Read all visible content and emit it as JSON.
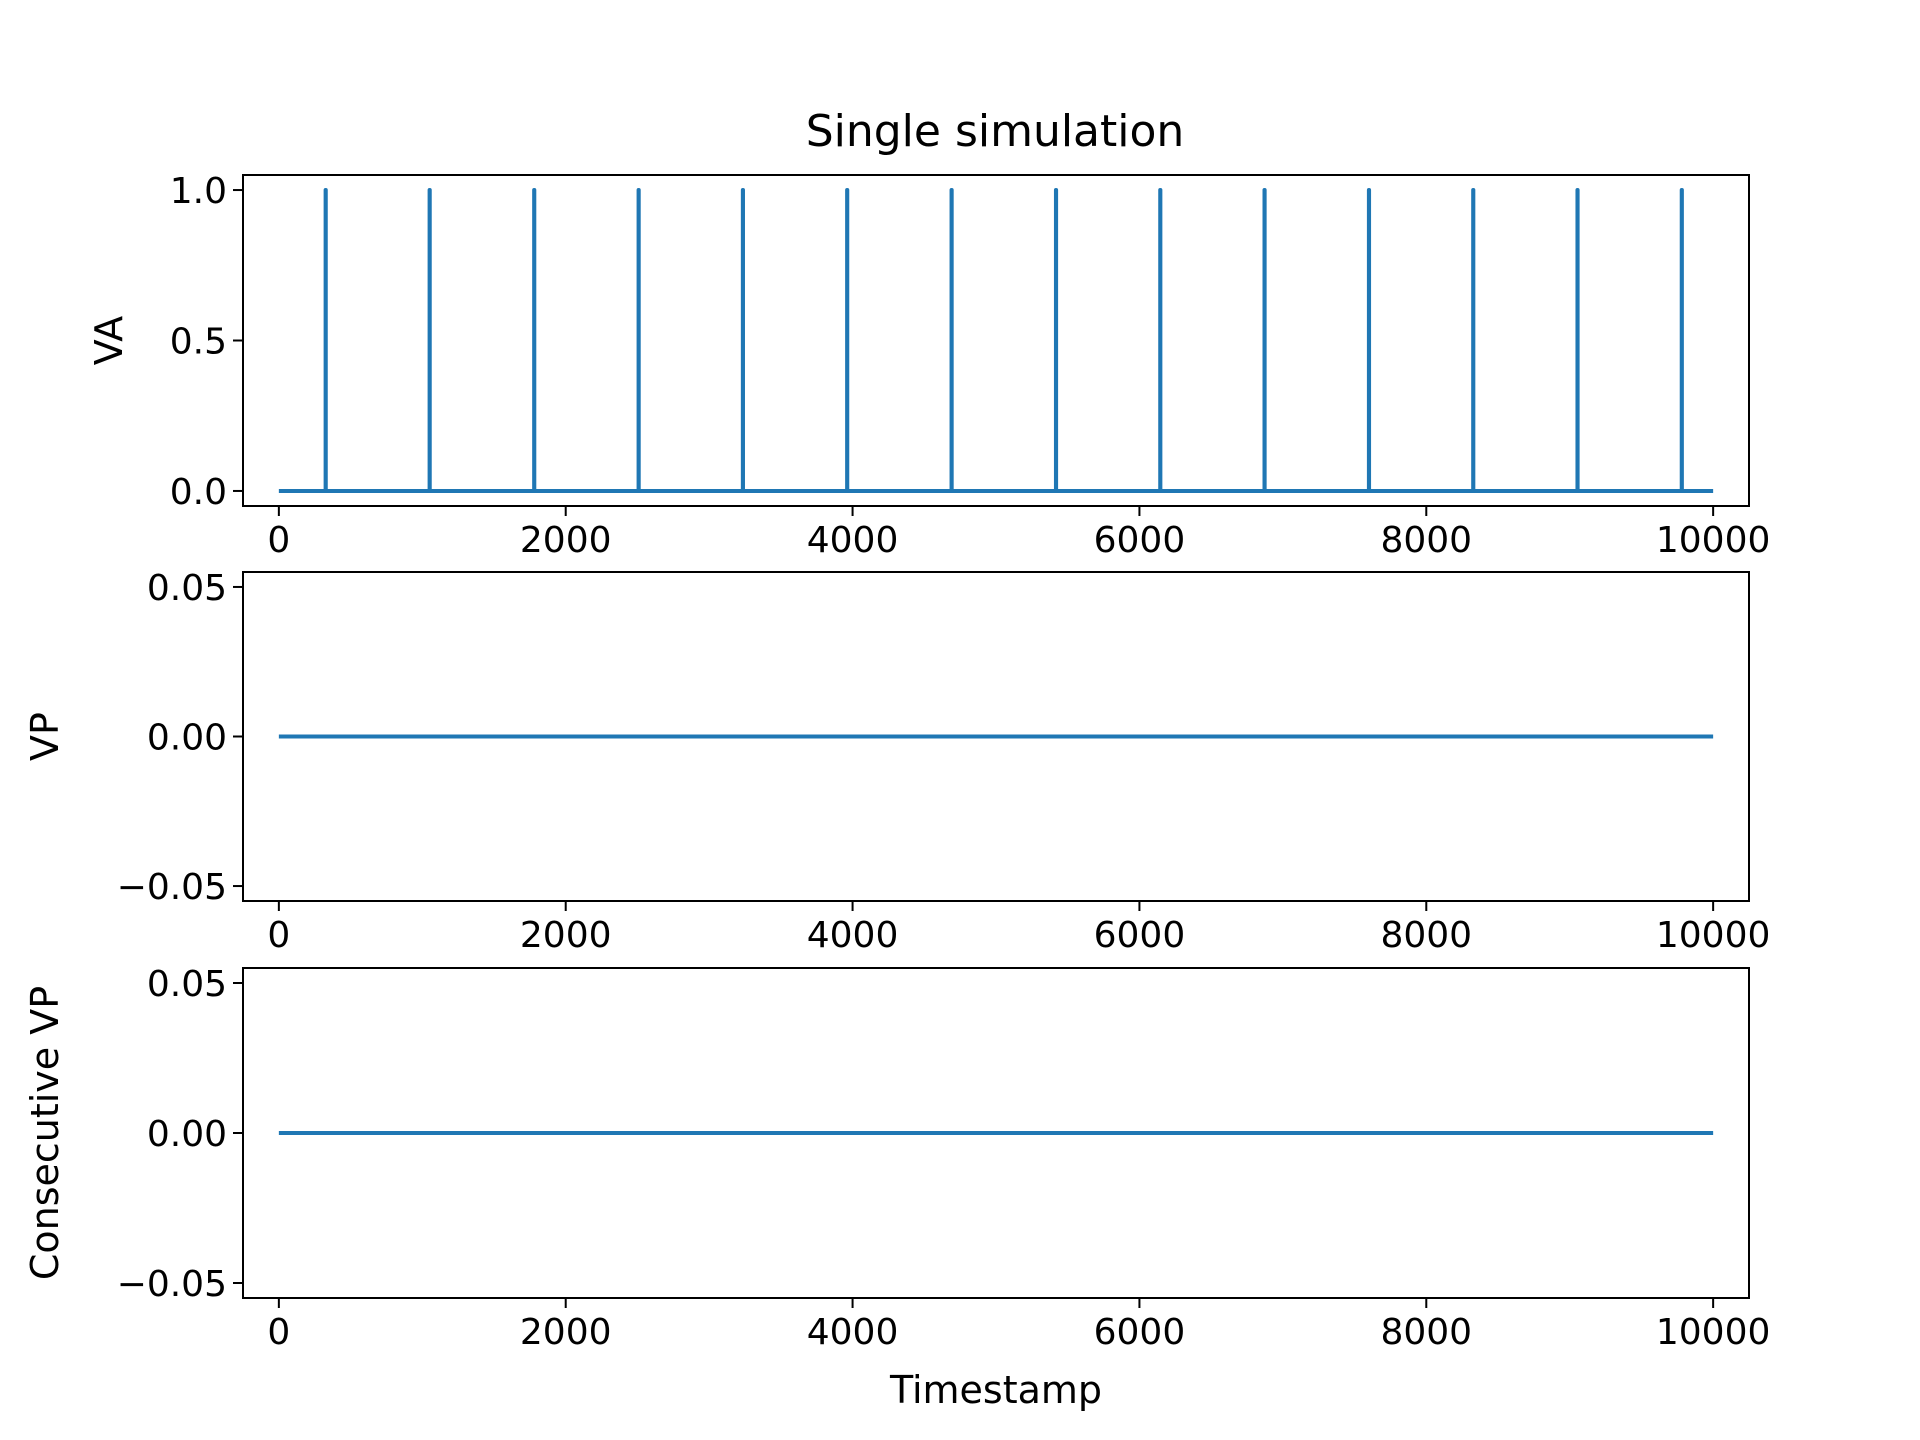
{
  "figure": {
    "title": "Single simulation",
    "line_color": "#1f77b4"
  },
  "chart_data": [
    {
      "type": "line",
      "title": "Single simulation",
      "xlabel": "",
      "ylabel": "VA",
      "xlim": [
        -250,
        10250
      ],
      "ylim": [
        -0.05,
        1.05
      ],
      "xticks": [
        0,
        2000,
        4000,
        6000,
        8000,
        10000
      ],
      "xtick_labels": [
        "0",
        "2000",
        "4000",
        "6000",
        "8000",
        "10000"
      ],
      "yticks": [
        0.0,
        0.5,
        1.0
      ],
      "ytick_labels": [
        "0.0",
        "0.5",
        "1.0"
      ],
      "grid": false,
      "series": [
        {
          "x": [
            0,
            326,
            326,
            327,
            327,
            1051,
            1051,
            1052,
            1052,
            1780,
            1780,
            1781,
            1781,
            2508,
            2508,
            2509,
            2509,
            3235,
            3235,
            3236,
            3236,
            3962,
            3962,
            3963,
            3963,
            4690,
            4690,
            4691,
            4691,
            5418,
            5418,
            5419,
            5419,
            6145,
            6145,
            6146,
            6146,
            6872,
            6872,
            6873,
            6873,
            7600,
            7600,
            7601,
            7601,
            8327,
            8327,
            8328,
            8328,
            9054,
            9054,
            9055,
            9055,
            9781,
            9781,
            9782,
            9782,
            10000
          ],
          "y": [
            0,
            0,
            1,
            1,
            0,
            0,
            1,
            1,
            0,
            0,
            1,
            1,
            0,
            0,
            1,
            1,
            0,
            0,
            1,
            1,
            0,
            0,
            1,
            1,
            0,
            0,
            1,
            1,
            0,
            0,
            1,
            1,
            0,
            0,
            1,
            1,
            0,
            0,
            1,
            1,
            0,
            0,
            1,
            1,
            0,
            0,
            1,
            1,
            0,
            0,
            1,
            1,
            0,
            0,
            1,
            1,
            0,
            0
          ]
        }
      ]
    },
    {
      "type": "line",
      "title": "",
      "xlabel": "",
      "ylabel": "VP",
      "xlim": [
        -250,
        10250
      ],
      "ylim": [
        -0.055,
        0.055
      ],
      "xticks": [
        0,
        2000,
        4000,
        6000,
        8000,
        10000
      ],
      "xtick_labels": [
        "0",
        "2000",
        "4000",
        "6000",
        "8000",
        "10000"
      ],
      "yticks": [
        -0.05,
        0.0,
        0.05
      ],
      "ytick_labels": [
        "−0.05",
        "0.00",
        "0.05"
      ],
      "grid": false,
      "series": [
        {
          "x": [
            0,
            10000
          ],
          "y": [
            0,
            0
          ]
        }
      ]
    },
    {
      "type": "line",
      "title": "",
      "xlabel": "Timestamp",
      "ylabel": "Consecutive VP",
      "xlim": [
        -250,
        10250
      ],
      "ylim": [
        -0.055,
        0.055
      ],
      "xticks": [
        0,
        2000,
        4000,
        6000,
        8000,
        10000
      ],
      "xtick_labels": [
        "0",
        "2000",
        "4000",
        "6000",
        "8000",
        "10000"
      ],
      "yticks": [
        -0.05,
        0.0,
        0.05
      ],
      "ytick_labels": [
        "−0.05",
        "0.00",
        "0.05"
      ],
      "grid": false,
      "series": [
        {
          "x": [
            0,
            10000
          ],
          "y": [
            0,
            0
          ]
        }
      ]
    }
  ]
}
